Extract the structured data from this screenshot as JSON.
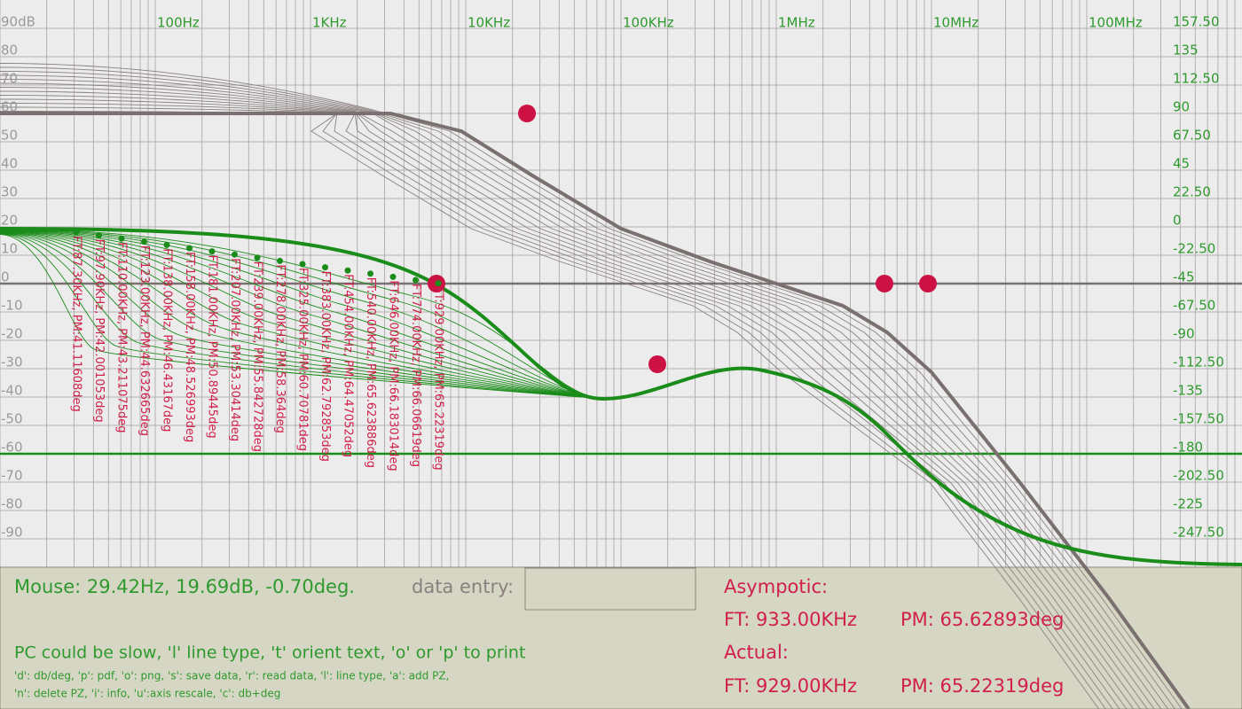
{
  "axes": {
    "top_labels": [
      "100Hz",
      "1KHz",
      "10KHz",
      "100KHz",
      "1MHz",
      "10MHz",
      "100MHz"
    ],
    "left_labels": [
      "90dB",
      "80",
      "70",
      "60",
      "50",
      "40",
      "30",
      "20",
      "10",
      "0",
      "-10",
      "-20",
      "-30",
      "-40",
      "-50",
      "-60",
      "-70",
      "-80",
      "-90"
    ],
    "right_labels": [
      "157.50",
      "135",
      "112.50",
      "90",
      "67.50",
      "45",
      "22.50",
      "0",
      "-22.50",
      "-45",
      "-67.50",
      "-90",
      "-112.50",
      "-135",
      "-157.50",
      "-180",
      "-202.50",
      "-225",
      "-247.50"
    ]
  },
  "annotations": [
    "FT:87.30KHz, PM:41.11608deg",
    "FT:97.90KHz, PM:42.001053deg",
    "FT:110.00KHz, PM:43.211075deg",
    "FT:123.00KHz, PM:44.632665deg",
    "FT:138.00KHz, PM:46.43167deg",
    "FT:158.00KHz, PM:48.526993deg",
    "FT:181.00KHz, PM:50.89445deg",
    "FT:207.00KHz, PM:53.30414deg",
    "FT:239.00KHz, PM:55.842728deg",
    "FT:278.00KHz, PM:58.364deg",
    "FT:325.00KHz, PM:60.70781deg",
    "FT:383.00KHz, PM:62.792853deg",
    "FT:454.00KHz, PM:64.47052deg",
    "FT:540.00KHz, PM:65.623886deg",
    "FT:646.00KHz, PM:66.183014deg",
    "FT:774.00KHz, PM:66.06619deg",
    "FT:929.00KHz, PM:65.22319deg"
  ],
  "panel": {
    "mouse": "Mouse: 29.42Hz, 19.69dB, -0.70deg.",
    "data_entry_label": "data entry:",
    "hint": "PC could be slow, 'l' line type, 't' orient text, 'o' or 'p' to print",
    "help_lines": [
      "'d': db/deg, 'p': pdf, 'o': png, 's': save data, 'r': read data, 'l': line type, 'a': add PZ,",
      "'n': delete PZ, 'i': info, 'u':axis rescale, 'c': db+deg"
    ],
    "asymptotic": {
      "title": "Asympotic:",
      "ft": "FT: 933.00KHz",
      "pm": "PM: 65.62893deg"
    },
    "actual": {
      "title": "Actual:",
      "ft": "FT: 929.00KHz",
      "pm": "PM: 65.22319deg"
    }
  }
}
